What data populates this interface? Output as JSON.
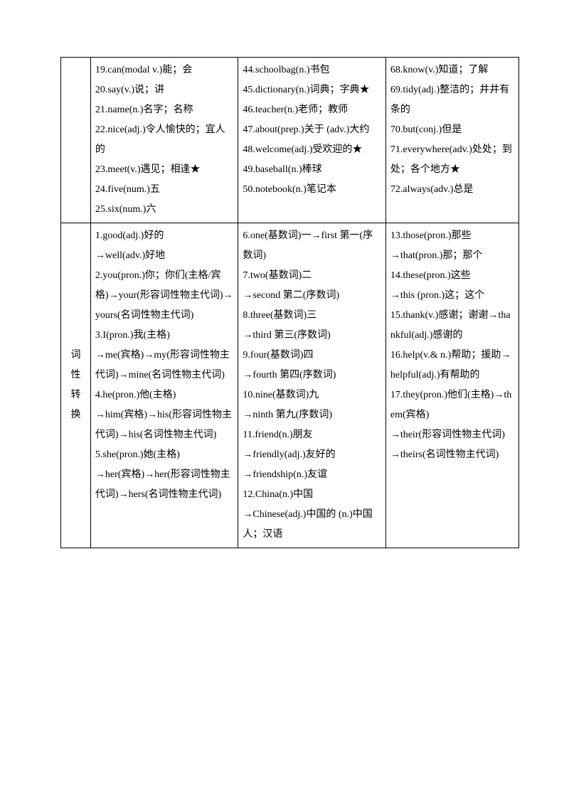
{
  "row1": {
    "label": "",
    "col1": [
      "19.can(modal v.)能；会",
      "20.say(v.)说；讲",
      "21.name(n.)名字；名称",
      "22.nice(adj.)令人愉快的；宜人的",
      "23.meet(v.)遇见；相逢★",
      "24.five(num.)五",
      "25.six(num.)六"
    ],
    "col2": [
      "44.schoolbag(n.)书包",
      "45.dictionary(n.)词典；字典★",
      "46.teacher(n.)老师；教师",
      "47.about(prep.)关于 (adv.)大约",
      "48.welcome(adj.)受欢迎的★",
      "49.baseball(n.)棒球",
      "50.notebook(n.)笔记本"
    ],
    "col3": [
      "68.know(v.)知道；了解",
      "69.tidy(adj.)整洁的；井井有条的",
      "70.but(conj.)但是",
      "71.everywhere(adv.)处处；到处；各个地方★",
      "72.always(adv.)总是"
    ]
  },
  "row2": {
    "label": [
      "词",
      "性",
      "转",
      "换"
    ],
    "col1": [
      "1.good(adj.)好的",
      "→well(adv.)好地",
      "2.you(pron.)你；你们(主格/宾格)→your(形容词性物主代词)→yours(名词性物主代词)",
      "3.I(pron.)我(主格)",
      "→me(宾格)→my(形容词性物主代词)→mine(名词性物主代词)",
      "4.he(pron.)他(主格)",
      "→him(宾格)→his(形容词性物主代词)→his(名词性物主代词)",
      "5.she(pron.)她(主格)",
      "→her(宾格)→her(形容词性物主代词)→hers(名词性物主代词)"
    ],
    "col2": [
      "",
      "6.one(基数词)一→first 第一(序数词)",
      "7.two(基数词)二",
      "→second 第二(序数词)",
      "8.three(基数词)三",
      "→third 第三(序数词)",
      "9.four(基数词)四",
      "→fourth 第四(序数词)",
      "10.nine(基数词)九",
      "→ninth 第九(序数词)",
      "11.friend(n.)朋友",
      "→friendly(adj.)友好的",
      "→friendship(n.)友谊",
      "12.China(n.)中国",
      "→Chinese(adj.)中国的 (n.)中国人；汉语"
    ],
    "col3": [
      "",
      "13.those(pron.)那些",
      "→that(pron.)那；那个",
      "14.these(pron.)这些",
      "→this (pron.)这；这个",
      "15.thank(v.)感谢；谢谢→thankful(adj.)感谢的",
      "16.help(v.& n.)帮助；援助→helpful(adj.)有帮助的",
      "17.they(pron.)他们(主格)→them(宾格)",
      "→their(形容词性物主代词)→theirs(名词性物主代词)"
    ]
  }
}
